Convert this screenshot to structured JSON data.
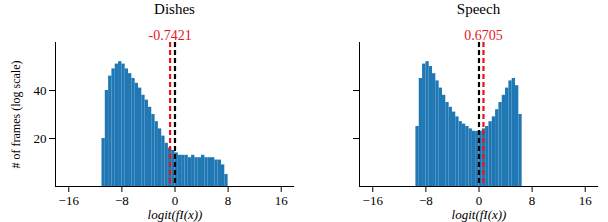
{
  "chart_data": [
    {
      "type": "histogram",
      "title": "Dishes",
      "color": "#1f77b4",
      "x_label": "logit(fI(x))",
      "y_label": "# of frames (log scale)",
      "bins": [
        -11,
        -10.5,
        -10,
        -9.5,
        -9,
        -8.5,
        -8,
        -7.5,
        -7,
        -6.5,
        -6,
        -5.5,
        -5,
        -4.5,
        -4,
        -3.5,
        -3,
        -2.5,
        -2,
        -1.5,
        -1,
        -0.5,
        0,
        0.5,
        1,
        1.5,
        2,
        2.5,
        3,
        3.5,
        4,
        4.5,
        5,
        5.5,
        6,
        6.5,
        7,
        7.5,
        8
      ],
      "values": [
        20,
        40,
        46,
        49,
        51,
        52,
        51,
        49,
        47,
        45,
        43,
        41,
        38,
        36,
        33,
        30,
        27,
        24,
        21,
        18,
        16,
        15,
        14,
        13,
        13,
        13,
        12,
        13,
        12,
        12,
        13,
        12,
        12,
        12,
        11,
        11,
        9,
        5
      ],
      "lines": [
        {
          "value": 0,
          "color": "black",
          "line_style": "dashed"
        },
        {
          "value": -0.7421,
          "color": "#e8141c",
          "line_style": "dashed",
          "data_labels": true
        }
      ],
      "xlim": [
        -18,
        18
      ],
      "xticks": [
        -16,
        -8,
        0,
        8,
        16
      ],
      "ylim": [
        0,
        60
      ],
      "yticks": [
        20,
        40
      ]
    },
    {
      "type": "histogram",
      "title": "Speech",
      "color": "#1f77b4",
      "x_label": "logit(fI(x))",
      "bins": [
        -9.5,
        -9,
        -8.5,
        -8,
        -7.5,
        -7,
        -6.5,
        -6,
        -5.5,
        -5,
        -4.5,
        -4,
        -3.5,
        -3,
        -2.5,
        -2,
        -1.5,
        -1,
        -0.5,
        0,
        0.5,
        1,
        1.5,
        2,
        2.5,
        3,
        3.5,
        4,
        4.5,
        5,
        5.5,
        6,
        6.5
      ],
      "values": [
        25,
        45,
        51,
        52,
        50,
        47,
        44,
        41,
        38,
        35,
        33,
        31,
        29,
        27,
        26,
        25,
        24,
        23,
        23,
        23,
        24,
        25,
        27,
        29,
        32,
        35,
        38,
        41,
        44,
        45,
        42,
        30
      ],
      "lines": [
        {
          "value": 0,
          "color": "black",
          "line_style": "dashed"
        },
        {
          "value": 0.6705,
          "color": "#e8141c",
          "line_style": "dashed",
          "data_labels": true
        }
      ],
      "xlim": [
        -18,
        18
      ],
      "xticks": [
        -16,
        -8,
        0,
        8,
        16
      ],
      "ylim": [
        0,
        60
      ],
      "yticks": [
        20,
        40
      ],
      "tick_labels": "x"
    }
  ]
}
